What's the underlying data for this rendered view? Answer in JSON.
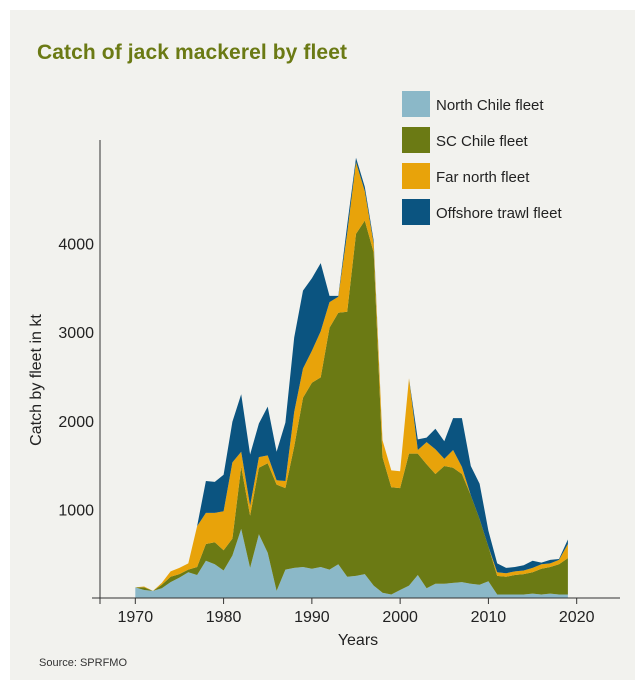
{
  "chart_data": {
    "type": "area",
    "stacked": true,
    "title": "Catch of jack mackerel by fleet",
    "xlabel": "Years",
    "ylabel": "Catch by fleet in kt",
    "source": "Source: SPRFMO",
    "xlim": [
      1966,
      2024
    ],
    "ylim": [
      0,
      5000
    ],
    "xticks": [
      1970,
      1980,
      1990,
      2000,
      2010,
      2020
    ],
    "yticks": [
      1000,
      2000,
      3000,
      4000
    ],
    "legend_position": "top-right",
    "x": [
      1970,
      1971,
      1972,
      1973,
      1974,
      1975,
      1976,
      1977,
      1978,
      1979,
      1980,
      1981,
      1982,
      1983,
      1984,
      1985,
      1986,
      1987,
      1988,
      1989,
      1990,
      1991,
      1992,
      1993,
      1994,
      1995,
      1996,
      1997,
      1998,
      1999,
      2000,
      2001,
      2002,
      2003,
      2004,
      2005,
      2006,
      2007,
      2008,
      2009,
      2010,
      2011,
      2012,
      2013,
      2014,
      2015,
      2016,
      2017,
      2018,
      2019
    ],
    "series": [
      {
        "name": "North Chile fleet",
        "color": "#8bb8c8",
        "values": [
          120,
          90,
          80,
          110,
          180,
          230,
          290,
          260,
          420,
          380,
          310,
          480,
          780,
          340,
          720,
          510,
          80,
          320,
          340,
          350,
          330,
          350,
          320,
          380,
          240,
          250,
          270,
          140,
          60,
          40,
          90,
          140,
          260,
          110,
          160,
          160,
          170,
          180,
          160,
          150,
          190,
          40,
          40,
          40,
          40,
          50,
          40,
          50,
          40,
          40
        ]
      },
      {
        "name": "SC Chile fleet",
        "color": "#6b7a14",
        "values": [
          0,
          30,
          0,
          40,
          60,
          40,
          30,
          90,
          190,
          250,
          230,
          190,
          700,
          590,
          750,
          1010,
          1200,
          920,
          1370,
          1910,
          2100,
          2140,
          2730,
          2840,
          2990,
          3860,
          3990,
          3760,
          1530,
          1210,
          1150,
          1490,
          1370,
          1400,
          1240,
          1330,
          1300,
          1220,
          1000,
          740,
          390,
          210,
          200,
          220,
          230,
          240,
          290,
          300,
          340,
          410
        ]
      },
      {
        "name": "Far north fleet",
        "color": "#e8a30a",
        "values": [
          0,
          10,
          0,
          20,
          60,
          70,
          70,
          460,
          350,
          330,
          440,
          860,
          170,
          110,
          120,
          90,
          50,
          80,
          390,
          330,
          360,
          520,
          290,
          180,
          890,
          810,
          330,
          100,
          190,
          190,
          190,
          850,
          40,
          250,
          280,
          80,
          200,
          80,
          0,
          0,
          0,
          40,
          40,
          40,
          40,
          50,
          50,
          40,
          50,
          160
        ]
      },
      {
        "name": "Offshore trawl fleet",
        "color": "#0b5480",
        "values": [
          0,
          0,
          0,
          0,
          0,
          0,
          0,
          0,
          360,
          350,
          410,
          460,
          650,
          580,
          380,
          550,
          320,
          660,
          840,
          880,
          820,
          770,
          70,
          10,
          90,
          50,
          50,
          30,
          0,
          0,
          0,
          0,
          120,
          50,
          230,
          200,
          360,
          550,
          330,
          400,
          180,
          100,
          60,
          50,
          60,
          80,
          20,
          40,
          10,
          50
        ]
      }
    ]
  }
}
